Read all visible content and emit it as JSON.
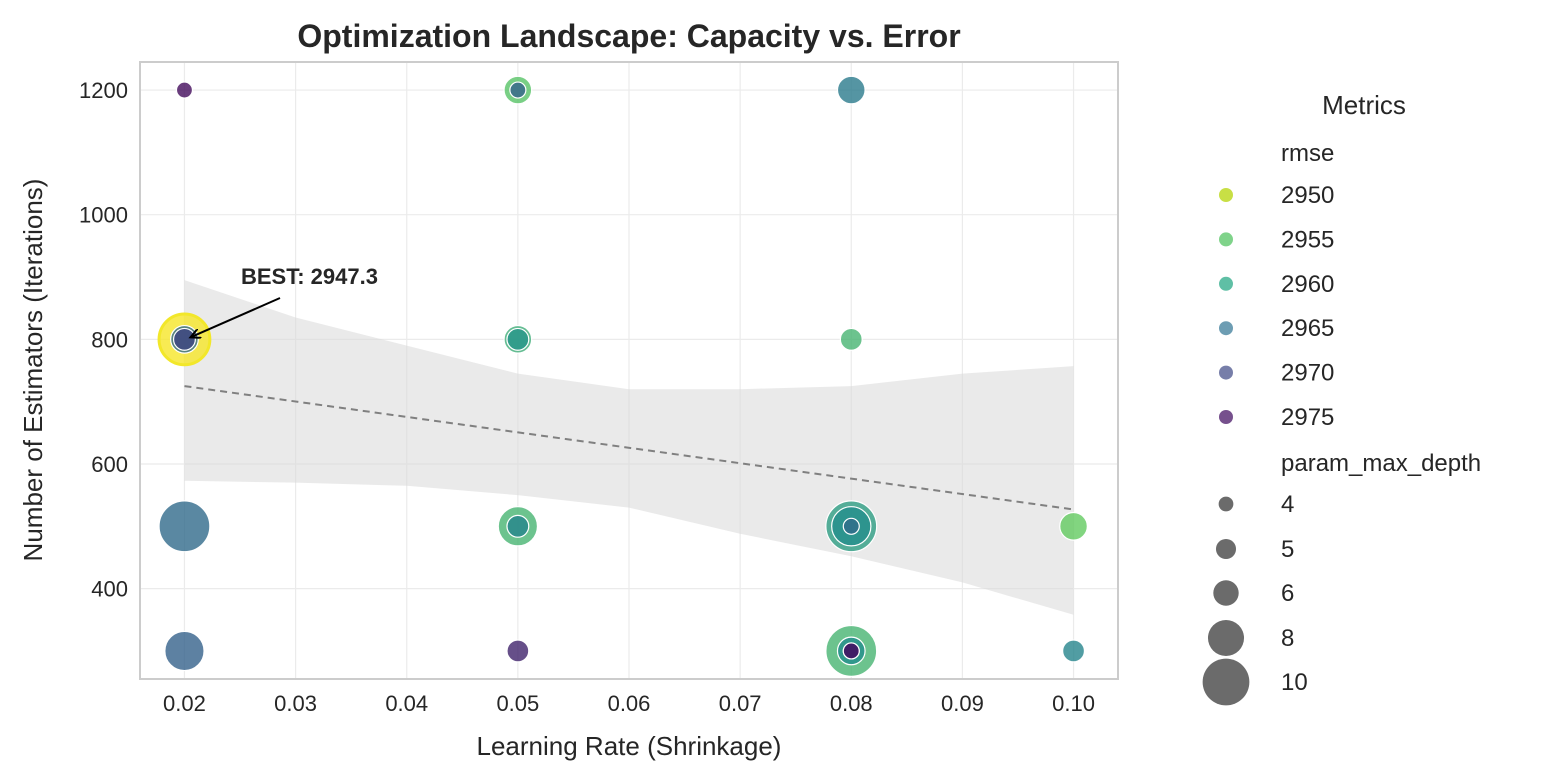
{
  "chart_data": {
    "type": "scatter",
    "title": "Optimization Landscape: Capacity vs. Error",
    "xlabel": "Learning Rate (Shrinkage)",
    "ylabel": "Number of Estimators (Iterations)",
    "xlim": [
      0.016,
      0.104
    ],
    "ylim": [
      255,
      1245
    ],
    "xticks": [
      0.02,
      0.03,
      0.04,
      0.05,
      0.06,
      0.07,
      0.08,
      0.09,
      0.1
    ],
    "xtick_labels": [
      "0.02",
      "0.03",
      "0.04",
      "0.05",
      "0.06",
      "0.07",
      "0.08",
      "0.09",
      "0.10"
    ],
    "yticks": [
      400,
      600,
      800,
      1000,
      1200
    ],
    "ytick_labels": [
      "400",
      "600",
      "800",
      "1000",
      "1200"
    ],
    "grid": true,
    "colormap": "viridis",
    "hue_variable": "rmse",
    "size_variable": "param_max_depth",
    "points": [
      {
        "x": 0.02,
        "y": 1200,
        "rmse": 2975,
        "depth": 4
      },
      {
        "x": 0.05,
        "y": 1200,
        "rmse": 2955,
        "depth": 6
      },
      {
        "x": 0.05,
        "y": 1200,
        "rmse": 2967,
        "depth": 4
      },
      {
        "x": 0.08,
        "y": 1200,
        "rmse": 2964,
        "depth": 6
      },
      {
        "x": 0.02,
        "y": 800,
        "rmse": 2947.3,
        "depth": 10
      },
      {
        "x": 0.02,
        "y": 800,
        "rmse": 2966,
        "depth": 6
      },
      {
        "x": 0.02,
        "y": 800,
        "rmse": 2970,
        "depth": 5
      },
      {
        "x": 0.05,
        "y": 800,
        "rmse": 2958,
        "depth": 6
      },
      {
        "x": 0.05,
        "y": 800,
        "rmse": 2961,
        "depth": 5
      },
      {
        "x": 0.08,
        "y": 800,
        "rmse": 2957,
        "depth": 5
      },
      {
        "x": 0.02,
        "y": 500,
        "rmse": 2966,
        "depth": 10
      },
      {
        "x": 0.05,
        "y": 500,
        "rmse": 2957,
        "depth": 8
      },
      {
        "x": 0.05,
        "y": 500,
        "rmse": 2963,
        "depth": 5
      },
      {
        "x": 0.08,
        "y": 500,
        "rmse": 2960,
        "depth": 10
      },
      {
        "x": 0.08,
        "y": 500,
        "rmse": 2962,
        "depth": 8
      },
      {
        "x": 0.08,
        "y": 500,
        "rmse": 2966,
        "depth": 4
      },
      {
        "x": 0.1,
        "y": 500,
        "rmse": 2954,
        "depth": 6
      },
      {
        "x": 0.02,
        "y": 300,
        "rmse": 2967,
        "depth": 8
      },
      {
        "x": 0.05,
        "y": 300,
        "rmse": 2973,
        "depth": 5
      },
      {
        "x": 0.08,
        "y": 300,
        "rmse": 2957,
        "depth": 10
      },
      {
        "x": 0.08,
        "y": 300,
        "rmse": 2962,
        "depth": 6
      },
      {
        "x": 0.08,
        "y": 300,
        "rmse": 2968,
        "depth": 4
      },
      {
        "x": 0.08,
        "y": 300,
        "rmse": 2975,
        "depth": 4
      },
      {
        "x": 0.1,
        "y": 300,
        "rmse": 2963,
        "depth": 5
      }
    ],
    "trendline": {
      "x": [
        0.02,
        0.1
      ],
      "y": [
        725,
        527
      ]
    },
    "confidence_band": {
      "x": [
        0.02,
        0.03,
        0.04,
        0.05,
        0.06,
        0.07,
        0.08,
        0.09,
        0.1
      ],
      "upper": [
        895,
        835,
        790,
        745,
        720,
        720,
        725,
        745,
        757
      ],
      "lower": [
        573,
        570,
        565,
        550,
        530,
        488,
        452,
        410,
        358
      ]
    },
    "annotation": {
      "text": "BEST: 2947.3",
      "x": 0.02,
      "y": 800
    },
    "legend": {
      "title": "Metrics",
      "placement": "outside-right",
      "hue_title": "rmse",
      "hue_entries": [
        {
          "label": "2950",
          "color": "#c8df45"
        },
        {
          "label": "2955",
          "color": "#7fd38a"
        },
        {
          "label": "2960",
          "color": "#5fbfa5"
        },
        {
          "label": "2965",
          "color": "#6d9db3"
        },
        {
          "label": "2970",
          "color": "#777ea9"
        },
        {
          "label": "2975",
          "color": "#76508d"
        }
      ],
      "size_title": "param_max_depth",
      "size_entries": [
        {
          "label": "4",
          "depth": 4
        },
        {
          "label": "5",
          "depth": 5
        },
        {
          "label": "6",
          "depth": 6
        },
        {
          "label": "8",
          "depth": 8
        },
        {
          "label": "10",
          "depth": 10
        }
      ]
    }
  }
}
